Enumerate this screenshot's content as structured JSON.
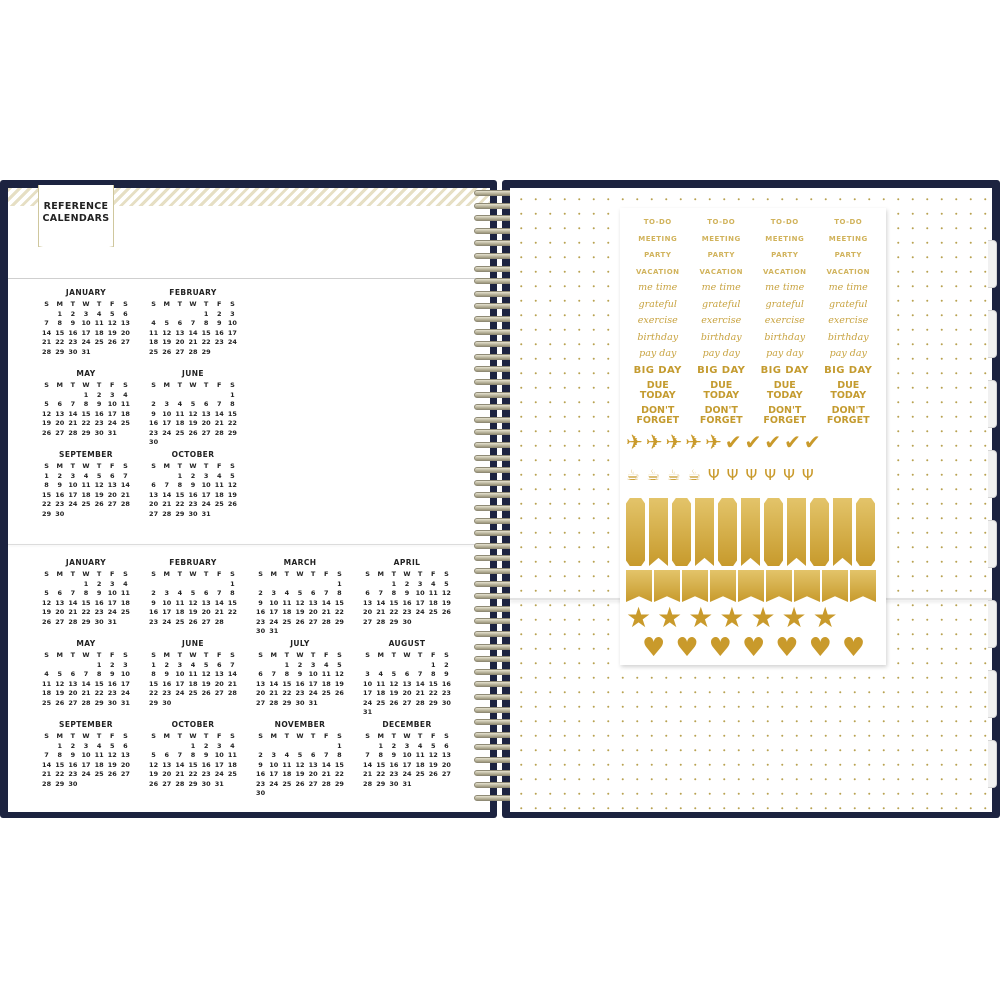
{
  "reference_label": {
    "line1": "REFERENCE",
    "line2": "CALENDARS"
  },
  "weekday_header": [
    "S",
    "M",
    "T",
    "W",
    "T",
    "F",
    "S"
  ],
  "calendars": {
    "top": [
      {
        "name": "JANUARY",
        "first_weekday": 1,
        "days": 31
      },
      {
        "name": "FEBRUARY",
        "first_weekday": 4,
        "days": 29
      },
      {
        "name": "MAY",
        "first_weekday": 3,
        "days": 31
      },
      {
        "name": "JUNE",
        "first_weekday": 6,
        "days": 30
      },
      {
        "name": "SEPTEMBER",
        "first_weekday": 0,
        "days": 30
      },
      {
        "name": "OCTOBER",
        "first_weekday": 2,
        "days": 31
      }
    ],
    "bottom": [
      {
        "name": "JANUARY",
        "first_weekday": 3,
        "days": 31
      },
      {
        "name": "FEBRUARY",
        "first_weekday": 6,
        "days": 28
      },
      {
        "name": "MARCH",
        "first_weekday": 6,
        "days": 31
      },
      {
        "name": "APRIL",
        "first_weekday": 2,
        "days": 30
      },
      {
        "name": "MAY",
        "first_weekday": 4,
        "days": 31
      },
      {
        "name": "JUNE",
        "first_weekday": 0,
        "days": 30
      },
      {
        "name": "JULY",
        "first_weekday": 2,
        "days": 31
      },
      {
        "name": "AUGUST",
        "first_weekday": 5,
        "days": 31
      },
      {
        "name": "SEPTEMBER",
        "first_weekday": 1,
        "days": 30
      },
      {
        "name": "OCTOBER",
        "first_weekday": 3,
        "days": 31
      },
      {
        "name": "NOVEMBER",
        "first_weekday": 6,
        "days": 30
      },
      {
        "name": "DECEMBER",
        "first_weekday": 1,
        "days": 31
      }
    ]
  },
  "stickers": {
    "words": [
      {
        "text": "TO-DO",
        "style": "caps"
      },
      {
        "text": "MEETING",
        "style": "caps"
      },
      {
        "text": "PARTY",
        "style": "caps"
      },
      {
        "text": "VACATION",
        "style": "caps"
      },
      {
        "text": "me time",
        "style": "script"
      },
      {
        "text": "grateful",
        "style": "script"
      },
      {
        "text": "exercise",
        "style": "script"
      },
      {
        "text": "birthday",
        "style": "script"
      },
      {
        "text": "pay day",
        "style": "script"
      },
      {
        "text": "BIG DAY",
        "style": "big"
      },
      {
        "text": "DUE TODAY",
        "style": "two"
      },
      {
        "text": "DON'T FORGET",
        "style": "two"
      }
    ],
    "columns": 4,
    "icon_rows": [
      {
        "icons": [
          "airplane-icon",
          "airplane-icon",
          "airplane-icon",
          "airplane-icon",
          "airplane-icon",
          "checkmark-icon",
          "checkmark-icon",
          "checkmark-icon",
          "checkmark-icon",
          "checkmark-icon"
        ]
      },
      {
        "icons": [
          "coffee-cup-icon",
          "coffee-cup-icon",
          "coffee-cup-icon",
          "coffee-cup-icon",
          "champagne-icon",
          "champagne-icon",
          "champagne-icon",
          "champagne-icon",
          "champagne-icon",
          "champagne-icon"
        ]
      },
      {
        "icons": [
          "star-icon",
          "star-icon",
          "star-icon",
          "star-icon",
          "star-icon",
          "star-icon",
          "star-icon"
        ]
      },
      {
        "icons": [
          "heart-icon",
          "heart-icon",
          "heart-icon",
          "heart-icon",
          "heart-icon",
          "heart-icon",
          "heart-icon"
        ]
      }
    ],
    "tall_tab_count": 11,
    "flag_count": 9,
    "gold": "#c99a2b"
  },
  "colors": {
    "cover": "#1c2340",
    "dot": "#b8a250",
    "stripe": "#e6dfc4"
  }
}
